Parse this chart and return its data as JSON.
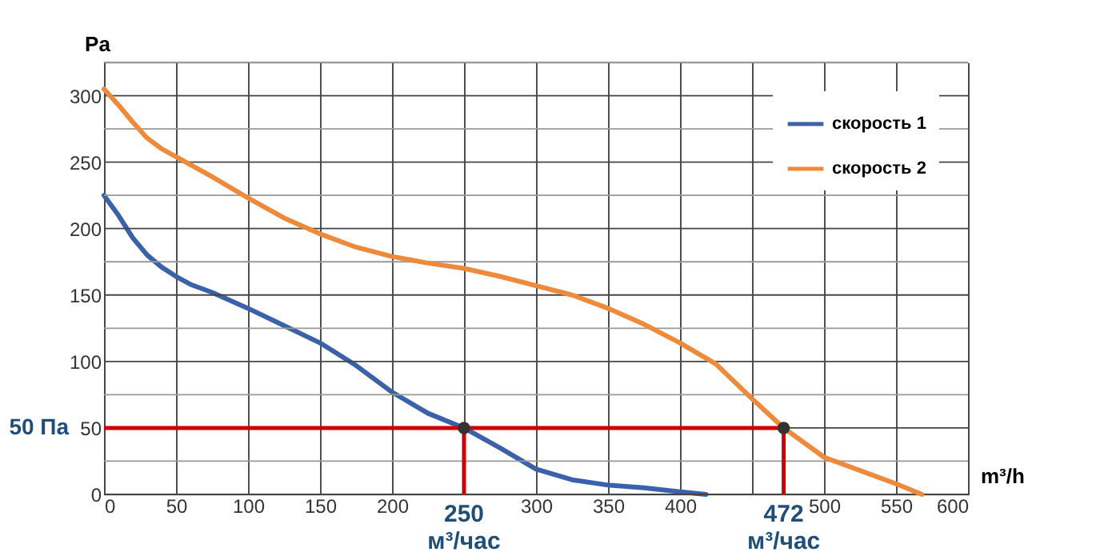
{
  "chart_data": {
    "type": "line",
    "xlabel": "m³/h",
    "ylabel": "Pa",
    "series": [
      {
        "name": "скорость 1",
        "color": "#3b62a8",
        "x": [
          0,
          10,
          20,
          30,
          40,
          50,
          60,
          75,
          100,
          125,
          150,
          175,
          200,
          225,
          250,
          275,
          300,
          325,
          350,
          375,
          400,
          418
        ],
        "values": [
          225,
          210,
          193,
          180,
          171,
          164,
          158,
          152,
          140,
          127,
          114,
          97,
          77,
          61,
          50,
          35,
          19,
          11,
          7,
          5,
          2,
          0
        ]
      },
      {
        "name": "скорость 2",
        "color": "#ee8a3c",
        "x": [
          0,
          10,
          20,
          30,
          40,
          50,
          75,
          100,
          125,
          150,
          175,
          200,
          225,
          250,
          275,
          300,
          325,
          350,
          375,
          400,
          425,
          450,
          472,
          500,
          525,
          550,
          568
        ],
        "values": [
          305,
          293,
          280,
          268,
          260,
          254,
          239,
          223,
          208,
          196,
          186,
          179,
          174,
          170,
          164,
          157,
          150,
          140,
          128,
          114,
          98,
          72,
          50,
          28,
          18,
          8,
          0
        ]
      },
      {
        "type": "scatter",
        "marker": "circle",
        "color": "#333333",
        "x": [
          250,
          472
        ],
        "values": [
          50,
          50
        ]
      }
    ],
    "ref_lines": [
      {
        "axis": "y",
        "value": 50,
        "label": "50 Па",
        "color": "#cc0000"
      },
      {
        "axis": "x",
        "value": 250,
        "label": "250 м³/час",
        "color": "#cc0000"
      },
      {
        "axis": "x",
        "value": 472,
        "label": "472 м³/час",
        "color": "#cc0000"
      }
    ],
    "xlim": [
      0,
      600
    ],
    "xticks": [
      0,
      50,
      100,
      150,
      200,
      {
        "value": 250,
        "label": null
      },
      300,
      350,
      400,
      {
        "value": 450,
        "label": null
      },
      500,
      550,
      600
    ],
    "ylim": [
      0,
      325
    ],
    "yticks": [
      0,
      {
        "value": 25,
        "label": null
      },
      50,
      {
        "value": 75,
        "label": null
      },
      100,
      {
        "value": 125,
        "label": null
      },
      150,
      {
        "value": 175,
        "label": null
      },
      200,
      {
        "value": 225,
        "label": null
      },
      250,
      {
        "value": 275,
        "label": null
      },
      300,
      {
        "value": 325,
        "label": null
      }
    ],
    "grid": true,
    "legend": "top right",
    "marker": "none",
    "line_style": "solid"
  }
}
